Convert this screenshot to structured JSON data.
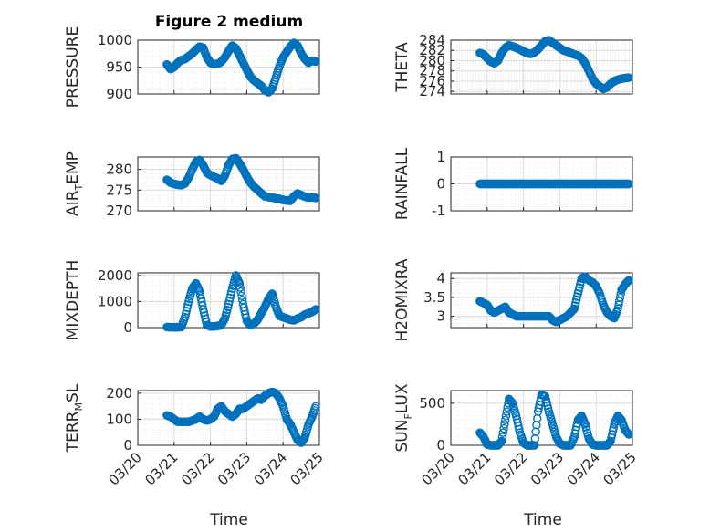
{
  "figure_title": "Figure 2 medium",
  "colors": {
    "marker": "#0072BD",
    "axis": "#262626",
    "grid": "#dcdcdc",
    "minor_grid": "#ececec"
  },
  "x_axis": {
    "label": "Time",
    "ticks": [
      "03/20",
      "03/21",
      "03/22",
      "03/23",
      "03/24",
      "03/25"
    ]
  },
  "chart_data": [
    {
      "type": "scatter",
      "ylabel": "PRESSURE",
      "ylim": [
        900,
        1000
      ],
      "yticks": [
        "900",
        "950",
        "1000"
      ],
      "grid": true,
      "x": [
        0.8,
        0.9,
        1.0,
        1.1,
        1.2,
        1.3,
        1.4,
        1.5,
        1.6,
        1.7,
        1.8,
        1.9,
        2.0,
        2.1,
        2.2,
        2.3,
        2.4,
        2.5,
        2.6,
        2.7,
        2.8,
        2.9,
        3.0,
        3.1,
        3.2,
        3.3,
        3.4,
        3.5,
        3.6,
        3.7,
        3.8,
        3.9,
        4.0,
        4.1,
        4.2,
        4.3,
        4.4,
        4.5,
        4.6,
        4.7,
        4.8,
        4.9
      ],
      "y": [
        955,
        946,
        950,
        958,
        963,
        965,
        970,
        975,
        982,
        988,
        986,
        968,
        958,
        955,
        956,
        960,
        968,
        980,
        990,
        985,
        972,
        958,
        945,
        932,
        925,
        920,
        915,
        907,
        903,
        910,
        930,
        952,
        968,
        978,
        988,
        995,
        990,
        975,
        965,
        958,
        962,
        960
      ]
    },
    {
      "type": "scatter",
      "ylabel": "THETA",
      "ylim": [
        273.5,
        284
      ],
      "yticks": [
        "274",
        "276",
        "278",
        "280",
        "282",
        "284"
      ],
      "grid": true,
      "x": [
        0.8,
        0.9,
        1.0,
        1.1,
        1.2,
        1.3,
        1.4,
        1.5,
        1.6,
        1.7,
        1.8,
        1.9,
        2.0,
        2.1,
        2.2,
        2.3,
        2.4,
        2.5,
        2.6,
        2.7,
        2.8,
        2.9,
        3.0,
        3.1,
        3.2,
        3.3,
        3.4,
        3.5,
        3.6,
        3.7,
        3.8,
        3.9,
        4.0,
        4.1,
        4.2,
        4.3,
        4.4,
        4.5,
        4.6,
        4.7,
        4.8,
        4.9
      ],
      "y": [
        281.5,
        281.2,
        280.5,
        279.8,
        279.5,
        280,
        281.5,
        282.5,
        283,
        282.8,
        282.5,
        282.2,
        281.8,
        281.5,
        281.3,
        281.6,
        282.2,
        283,
        283.8,
        284,
        283.5,
        283,
        282.5,
        282,
        281.8,
        281.5,
        281.2,
        281,
        280.5,
        279.5,
        278,
        276.5,
        275.5,
        275,
        274.5,
        274.8,
        275.5,
        276,
        276.3,
        276.5,
        276.6,
        276.7
      ]
    },
    {
      "type": "scatter",
      "ylabel": "AIR_TEMP",
      "ylim": [
        270,
        283
      ],
      "yticks": [
        "270",
        "275",
        "280"
      ],
      "grid": true,
      "x": [
        0.8,
        0.9,
        1.0,
        1.1,
        1.2,
        1.3,
        1.4,
        1.5,
        1.6,
        1.7,
        1.8,
        1.9,
        2.0,
        2.1,
        2.2,
        2.3,
        2.4,
        2.5,
        2.6,
        2.7,
        2.8,
        2.9,
        3.0,
        3.1,
        3.2,
        3.3,
        3.4,
        3.5,
        3.6,
        3.7,
        3.8,
        3.9,
        4.0,
        4.1,
        4.2,
        4.3,
        4.4,
        4.5,
        4.6,
        4.7,
        4.8,
        4.9
      ],
      "y": [
        277.5,
        276.8,
        276.5,
        276.3,
        276.2,
        276.6,
        278,
        280,
        281.8,
        282.3,
        281,
        279.2,
        278.6,
        278.2,
        277.8,
        277.2,
        278.5,
        281,
        282.5,
        282.7,
        281.5,
        280,
        278.3,
        276.8,
        275.8,
        275,
        274.2,
        273.5,
        273.3,
        273.2,
        273,
        272.9,
        272.6,
        272.5,
        272.4,
        273.5,
        274.2,
        273.8,
        273.4,
        273.2,
        273.3,
        273.1
      ]
    },
    {
      "type": "scatter",
      "ylabel": "RAINFALL",
      "ylim": [
        -1,
        1
      ],
      "yticks": [
        "-1",
        "0",
        "1"
      ],
      "grid": true,
      "x": [
        0.8,
        0.9,
        1.0,
        1.1,
        1.2,
        1.3,
        1.4,
        1.5,
        1.6,
        1.7,
        1.8,
        1.9,
        2.0,
        2.1,
        2.2,
        2.3,
        2.4,
        2.5,
        2.6,
        2.7,
        2.8,
        2.9,
        3.0,
        3.1,
        3.2,
        3.3,
        3.4,
        3.5,
        3.6,
        3.7,
        3.8,
        3.9,
        4.0,
        4.1,
        4.2,
        4.3,
        4.4,
        4.5,
        4.6,
        4.7,
        4.8,
        4.9
      ],
      "y": [
        0,
        0,
        0,
        0,
        0,
        0,
        0,
        0,
        0,
        0,
        0,
        0,
        0,
        0,
        0,
        0,
        0,
        0,
        0,
        0,
        0,
        0,
        0,
        0,
        0,
        0,
        0,
        0,
        0,
        0,
        0,
        0,
        0,
        0,
        0,
        0,
        0,
        0,
        0,
        0,
        0,
        0
      ]
    },
    {
      "type": "scatter",
      "ylabel": "MIXDEPTH",
      "ylim": [
        0,
        2100
      ],
      "yticks": [
        "0",
        "1000",
        "2000"
      ],
      "grid": true,
      "x": [
        0.8,
        0.9,
        1.0,
        1.1,
        1.2,
        1.3,
        1.4,
        1.5,
        1.6,
        1.7,
        1.8,
        1.9,
        2.0,
        2.1,
        2.2,
        2.3,
        2.4,
        2.5,
        2.6,
        2.7,
        2.8,
        2.9,
        3.0,
        3.1,
        3.2,
        3.3,
        3.4,
        3.5,
        3.6,
        3.7,
        3.8,
        3.9,
        4.0,
        4.1,
        4.2,
        4.3,
        4.4,
        4.5,
        4.6,
        4.7,
        4.8,
        4.9
      ],
      "y": [
        20,
        15,
        10,
        15,
        20,
        400,
        1000,
        1500,
        1700,
        1400,
        700,
        100,
        40,
        50,
        60,
        100,
        350,
        900,
        1500,
        2000,
        1700,
        900,
        250,
        100,
        150,
        300,
        550,
        800,
        1100,
        1300,
        800,
        450,
        400,
        350,
        300,
        280,
        350,
        400,
        500,
        550,
        600,
        700
      ]
    },
    {
      "type": "scatter",
      "ylabel": "H2OMIXRA",
      "ylim": [
        2.7,
        4.15
      ],
      "yticks": [
        "3",
        "3.5",
        "4"
      ],
      "grid": true,
      "x": [
        0.8,
        0.9,
        1.0,
        1.1,
        1.2,
        1.3,
        1.4,
        1.5,
        1.6,
        1.7,
        1.8,
        1.9,
        2.0,
        2.1,
        2.2,
        2.3,
        2.4,
        2.5,
        2.6,
        2.7,
        2.8,
        2.9,
        3.0,
        3.1,
        3.2,
        3.3,
        3.4,
        3.5,
        3.6,
        3.7,
        3.8,
        3.9,
        4.0,
        4.1,
        4.2,
        4.3,
        4.4,
        4.5,
        4.6,
        4.7,
        4.8,
        4.9
      ],
      "y": [
        3.4,
        3.35,
        3.3,
        3.15,
        3.1,
        3.15,
        3.2,
        3.25,
        3.1,
        3.05,
        3.0,
        3.0,
        3.0,
        3.0,
        3.0,
        3.0,
        3.0,
        3.0,
        3.0,
        3.0,
        2.9,
        2.85,
        2.9,
        2.95,
        3.0,
        3.1,
        3.2,
        3.6,
        4.0,
        4.05,
        3.95,
        3.9,
        3.8,
        3.6,
        3.3,
        3.1,
        3.0,
        2.95,
        3.2,
        3.7,
        3.85,
        3.95
      ]
    },
    {
      "type": "scatter",
      "ylabel": "TERR_MSL",
      "ylim": [
        0,
        210
      ],
      "yticks": [
        "0",
        "100",
        "200"
      ],
      "grid": true,
      "x": [
        0.8,
        0.9,
        1.0,
        1.1,
        1.2,
        1.3,
        1.4,
        1.5,
        1.6,
        1.7,
        1.8,
        1.9,
        2.0,
        2.1,
        2.2,
        2.3,
        2.4,
        2.5,
        2.6,
        2.7,
        2.8,
        2.9,
        3.0,
        3.1,
        3.2,
        3.3,
        3.4,
        3.5,
        3.6,
        3.7,
        3.8,
        3.9,
        4.0,
        4.1,
        4.2,
        4.3,
        4.4,
        4.5,
        4.6,
        4.7,
        4.8,
        4.9
      ],
      "y": [
        115,
        110,
        100,
        90,
        90,
        90,
        90,
        95,
        100,
        110,
        100,
        95,
        100,
        110,
        140,
        150,
        130,
        120,
        110,
        120,
        140,
        140,
        150,
        160,
        170,
        180,
        175,
        190,
        200,
        205,
        200,
        180,
        150,
        100,
        80,
        50,
        20,
        10,
        30,
        80,
        110,
        150
      ]
    },
    {
      "type": "scatter",
      "ylabel": "SUN_FLUX",
      "ylim": [
        0,
        650
      ],
      "yticks": [
        "0",
        "500"
      ],
      "grid": true,
      "x": [
        0.8,
        0.9,
        1.0,
        1.1,
        1.2,
        1.3,
        1.4,
        1.5,
        1.6,
        1.7,
        1.8,
        1.9,
        2.0,
        2.1,
        2.2,
        2.3,
        2.4,
        2.5,
        2.6,
        2.7,
        2.8,
        2.9,
        3.0,
        3.1,
        3.2,
        3.3,
        3.4,
        3.5,
        3.6,
        3.7,
        3.8,
        3.9,
        4.0,
        4.1,
        4.2,
        4.3,
        4.4,
        4.5,
        4.6,
        4.7,
        4.8,
        4.9
      ],
      "y": [
        150,
        100,
        10,
        0,
        0,
        0,
        50,
        300,
        550,
        500,
        350,
        150,
        30,
        0,
        0,
        0,
        400,
        600,
        580,
        400,
        250,
        100,
        20,
        0,
        0,
        0,
        100,
        300,
        350,
        250,
        80,
        10,
        0,
        0,
        0,
        0,
        50,
        250,
        350,
        300,
        180,
        130
      ]
    }
  ]
}
